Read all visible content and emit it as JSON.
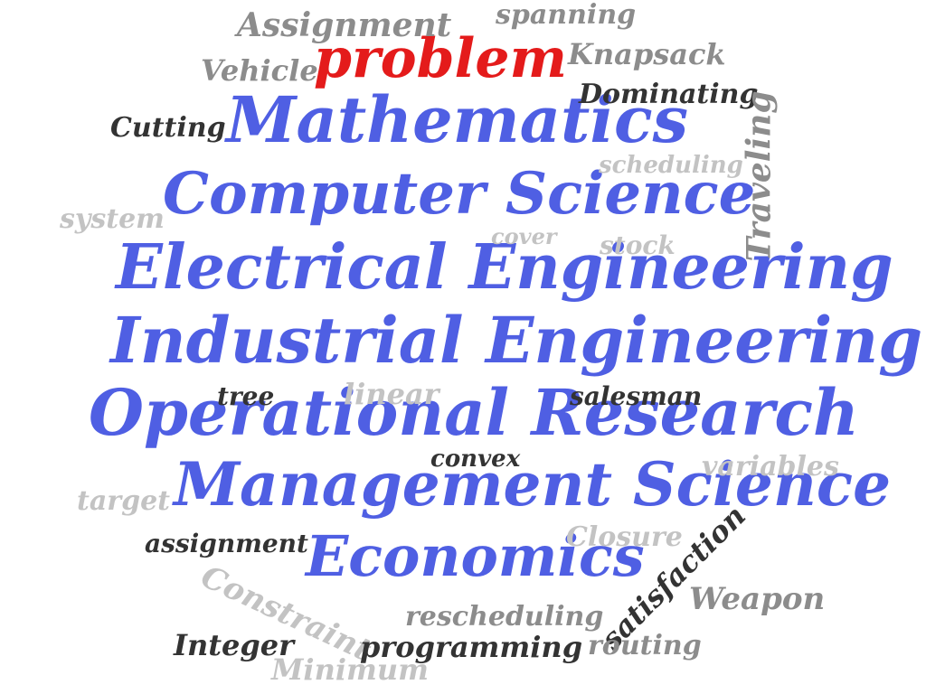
{
  "words": {
    "problem": "problem",
    "mathematics": "Mathematics",
    "computer_science": "Computer Science",
    "electrical_engineering": "Electrical Engineering",
    "industrial_engineering": "Industrial Engineering",
    "operational_research": "Operational Research",
    "management_science": "Management Science",
    "economics": "Economics",
    "assignment_cap": "Assignment",
    "spanning": "spanning",
    "knapsack": "Knapsack",
    "vehicle": "Vehicle",
    "dominating": "Dominating",
    "cutting": "Cutting",
    "traveling": "Traveling",
    "scheduling": "scheduling",
    "system": "system",
    "cover": "cover",
    "stock": "stock",
    "tree": "tree",
    "linear": "linear",
    "salesman": "salesman",
    "convex": "convex",
    "variables": "variables",
    "target": "target",
    "assignment": "assignment",
    "closure": "Closure",
    "satisfaction": "satisfaction",
    "weapon": "Weapon",
    "constraint": "Constraint",
    "rescheduling": "rescheduling",
    "integer": "Integer",
    "programming": "programming",
    "routing": "routing",
    "minimum": "Minimum"
  },
  "colors": {
    "primary_blue": "#4f5fe3",
    "highlight_red": "#e41b1b",
    "dark_gray": "#333333",
    "mid_gray": "#8c8c8c",
    "light_gray": "#c3c3c3",
    "background": "#ffffff"
  }
}
